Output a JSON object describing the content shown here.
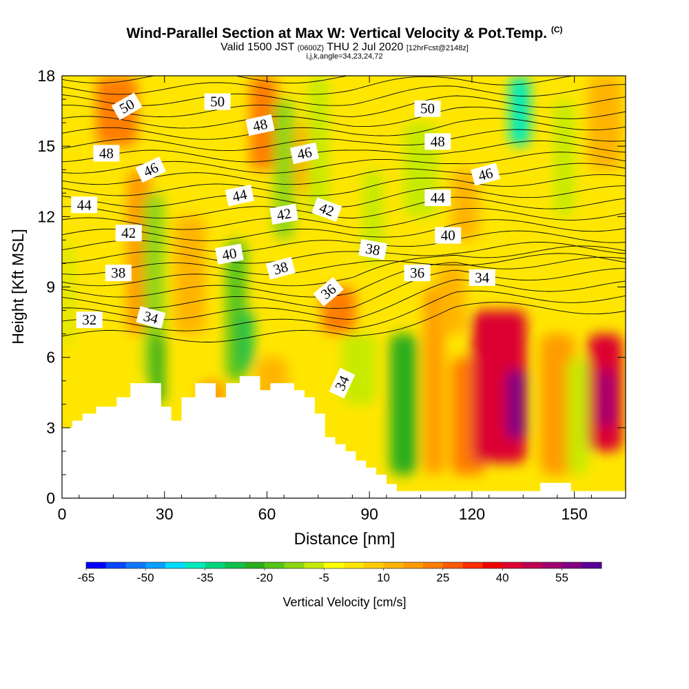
{
  "title": "Wind-Parallel Section at Max W: Vertical Velocity & Pot.Temp.",
  "title_mark": "(C)",
  "subtitle_main": "Valid 1500 JST",
  "subtitle_utc": "(0600Z)",
  "subtitle_date": "THU 2 Jul 2020",
  "subtitle_run": "[12hrFcst@2148z]",
  "subtitle_ijk": "i,j,k,angle=34,23,24,72",
  "chart_data": {
    "type": "heatmap",
    "xlabel": "Distance [nm]",
    "ylabel": "Height [Kft MSL]",
    "xlim": [
      0,
      165
    ],
    "ylim": [
      0,
      18
    ],
    "x_ticks": [
      0,
      30,
      60,
      90,
      120,
      150
    ],
    "y_ticks": [
      0,
      3,
      6,
      9,
      12,
      15,
      18
    ],
    "colorbar": {
      "label": "Vertical Velocity [cm/s]",
      "tick_labels": [
        "-65",
        "-50",
        "-35",
        "-20",
        "-5",
        "10",
        "25",
        "40",
        "55"
      ],
      "colors": [
        "#0000ff",
        "#0a46ff",
        "#0f78ff",
        "#0aa0ff",
        "#00dcff",
        "#00eabe",
        "#00d57e",
        "#10c04c",
        "#2aad1e",
        "#55c41a",
        "#8fd612",
        "#c6ea06",
        "#ffff00",
        "#ffe600",
        "#ffcd00",
        "#ffb400",
        "#ff9b00",
        "#ff7d00",
        "#ff5a00",
        "#ff2d00",
        "#f00000",
        "#dc0032",
        "#be0050",
        "#a00070",
        "#820082",
        "#5a0096"
      ]
    },
    "vertical_velocity_cells": [
      {
        "x": [
          1,
          3
        ],
        "y": [
          6.5,
          11
        ],
        "w": -12
      },
      {
        "x": [
          10,
          22
        ],
        "y": [
          15,
          18
        ],
        "w": 20
      },
      {
        "x": [
          19,
          26
        ],
        "y": [
          7,
          14
        ],
        "w": 15
      },
      {
        "x": [
          24,
          30
        ],
        "y": [
          5,
          13
        ],
        "w": -15
      },
      {
        "x": [
          26,
          30
        ],
        "y": [
          4,
          7
        ],
        "w": -25
      },
      {
        "x": [
          33,
          42
        ],
        "y": [
          7,
          12
        ],
        "w": 12
      },
      {
        "x": [
          40,
          48
        ],
        "y": [
          3,
          5
        ],
        "w": 15
      },
      {
        "x": [
          48,
          54
        ],
        "y": [
          5,
          11
        ],
        "w": -18
      },
      {
        "x": [
          52,
          56
        ],
        "y": [
          5.5,
          8
        ],
        "w": -30
      },
      {
        "x": [
          55,
          63
        ],
        "y": [
          14,
          18
        ],
        "w": 18
      },
      {
        "x": [
          57,
          66
        ],
        "y": [
          4,
          6
        ],
        "w": 12
      },
      {
        "x": [
          62,
          68
        ],
        "y": [
          11,
          17
        ],
        "w": -15
      },
      {
        "x": [
          68,
          74
        ],
        "y": [
          13,
          16
        ],
        "w": 12
      },
      {
        "x": [
          72,
          78
        ],
        "y": [
          12,
          18
        ],
        "w": -12
      },
      {
        "x": [
          76,
          86
        ],
        "y": [
          7,
          9
        ],
        "w": 22
      },
      {
        "x": [
          82,
          92
        ],
        "y": [
          4,
          7
        ],
        "w": -10
      },
      {
        "x": [
          88,
          94
        ],
        "y": [
          10,
          14
        ],
        "w": -12
      },
      {
        "x": [
          96,
          104
        ],
        "y": [
          1,
          7
        ],
        "w": -25
      },
      {
        "x": [
          100,
          110
        ],
        "y": [
          12,
          16
        ],
        "w": -10
      },
      {
        "x": [
          106,
          112
        ],
        "y": [
          1,
          9
        ],
        "w": 15
      },
      {
        "x": [
          110,
          118
        ],
        "y": [
          7,
          10
        ],
        "w": 12
      },
      {
        "x": [
          114,
          122
        ],
        "y": [
          11,
          14
        ],
        "w": 12
      },
      {
        "x": [
          114,
          124
        ],
        "y": [
          1,
          6
        ],
        "w": 20
      },
      {
        "x": [
          120,
          136
        ],
        "y": [
          1.5,
          8
        ],
        "w": 40
      },
      {
        "x": [
          130,
          136
        ],
        "y": [
          2.5,
          5.5
        ],
        "w": 57
      },
      {
        "x": [
          131,
          137
        ],
        "y": [
          15,
          18
        ],
        "w": -40
      },
      {
        "x": [
          140,
          150
        ],
        "y": [
          1,
          7
        ],
        "w": 15
      },
      {
        "x": [
          144,
          150
        ],
        "y": [
          12,
          17
        ],
        "w": -12
      },
      {
        "x": [
          148,
          154
        ],
        "y": [
          1,
          6
        ],
        "w": -10
      },
      {
        "x": [
          154,
          164
        ],
        "y": [
          2,
          7
        ],
        "w": 40
      },
      {
        "x": [
          157,
          162
        ],
        "y": [
          3,
          5.5
        ],
        "w": 52
      },
      {
        "x": [
          154,
          164
        ],
        "y": [
          14,
          18
        ],
        "w": 12
      }
    ],
    "theta_contour_labels": [
      {
        "text": "50",
        "x": 19,
        "y": 16.7,
        "rot": -30
      },
      {
        "text": "50",
        "x": 45.5,
        "y": 16.9,
        "rot": 0
      },
      {
        "text": "50",
        "x": 107,
        "y": 16.6,
        "rot": 0
      },
      {
        "text": "48",
        "x": 13,
        "y": 14.7,
        "rot": 0
      },
      {
        "text": "48",
        "x": 58,
        "y": 15.9,
        "rot": -12
      },
      {
        "text": "48",
        "x": 110,
        "y": 15.2,
        "rot": 0
      },
      {
        "text": "46",
        "x": 26,
        "y": 14.0,
        "rot": -25
      },
      {
        "text": "46",
        "x": 71,
        "y": 14.7,
        "rot": -12
      },
      {
        "text": "46",
        "x": 124,
        "y": 13.8,
        "rot": -15
      },
      {
        "text": "44",
        "x": 6.5,
        "y": 12.5,
        "rot": 0
      },
      {
        "text": "44",
        "x": 52,
        "y": 12.9,
        "rot": -12
      },
      {
        "text": "44",
        "x": 110,
        "y": 12.8,
        "rot": 0
      },
      {
        "text": "42",
        "x": 19.5,
        "y": 11.3,
        "rot": 0
      },
      {
        "text": "42",
        "x": 65,
        "y": 12.1,
        "rot": -10
      },
      {
        "text": "42",
        "x": 77.5,
        "y": 12.3,
        "rot": 20
      },
      {
        "text": "40",
        "x": 49,
        "y": 10.4,
        "rot": -10
      },
      {
        "text": "40",
        "x": 113,
        "y": 11.2,
        "rot": 0
      },
      {
        "text": "38",
        "x": 16.5,
        "y": 9.6,
        "rot": 0
      },
      {
        "text": "38",
        "x": 64,
        "y": 9.8,
        "rot": -15
      },
      {
        "text": "38",
        "x": 91,
        "y": 10.6,
        "rot": 10
      },
      {
        "text": "36",
        "x": 104,
        "y": 9.6,
        "rot": 0
      },
      {
        "text": "36",
        "x": 78,
        "y": 8.8,
        "rot": -40
      },
      {
        "text": "34",
        "x": 26,
        "y": 7.7,
        "rot": 15
      },
      {
        "text": "34",
        "x": 123,
        "y": 9.4,
        "rot": 0
      },
      {
        "text": "34",
        "x": 82,
        "y": 4.9,
        "rot": -65
      },
      {
        "text": "32",
        "x": 8,
        "y": 7.6,
        "rot": 0
      }
    ],
    "terrain": [
      [
        0,
        3.0
      ],
      [
        3,
        3.0
      ],
      [
        3,
        3.3
      ],
      [
        6,
        3.3
      ],
      [
        6,
        3.6
      ],
      [
        10,
        3.6
      ],
      [
        10,
        3.9
      ],
      [
        16,
        3.9
      ],
      [
        16,
        4.3
      ],
      [
        20,
        4.3
      ],
      [
        20,
        4.9
      ],
      [
        29,
        4.9
      ],
      [
        29,
        3.9
      ],
      [
        32,
        3.9
      ],
      [
        32,
        3.3
      ],
      [
        35,
        3.3
      ],
      [
        35,
        4.3
      ],
      [
        39,
        4.3
      ],
      [
        39,
        4.9
      ],
      [
        45,
        4.9
      ],
      [
        45,
        4.3
      ],
      [
        48,
        4.3
      ],
      [
        48,
        4.9
      ],
      [
        52,
        4.9
      ],
      [
        52,
        5.2
      ],
      [
        58,
        5.2
      ],
      [
        58,
        4.6
      ],
      [
        61,
        4.6
      ],
      [
        61,
        4.9
      ],
      [
        68,
        4.9
      ],
      [
        68,
        4.6
      ],
      [
        71,
        4.6
      ],
      [
        71,
        4.3
      ],
      [
        74,
        4.3
      ],
      [
        74,
        3.6
      ],
      [
        77,
        3.6
      ],
      [
        77,
        2.6
      ],
      [
        80,
        2.6
      ],
      [
        80,
        2.3
      ],
      [
        83,
        2.3
      ],
      [
        83,
        2.0
      ],
      [
        86,
        2.0
      ],
      [
        86,
        1.6
      ],
      [
        89,
        1.6
      ],
      [
        89,
        1.3
      ],
      [
        92,
        1.3
      ],
      [
        92,
        1.0
      ],
      [
        95,
        1.0
      ],
      [
        95,
        0.6
      ],
      [
        98,
        0.6
      ],
      [
        98,
        0.3
      ],
      [
        140,
        0.3
      ],
      [
        140,
        0.65
      ],
      [
        149,
        0.65
      ],
      [
        149,
        0.3
      ],
      [
        165,
        0.3
      ]
    ]
  }
}
